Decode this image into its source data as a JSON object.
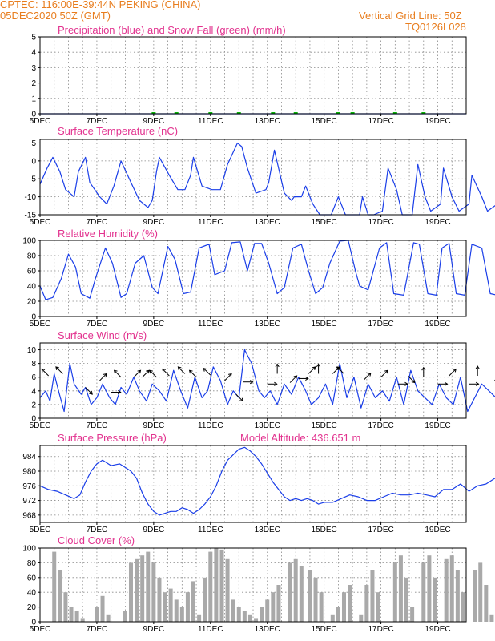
{
  "header": {
    "line1_left": "CPTEC:   116:00E-39:44N   PEKING (CHINA)",
    "line2_left": "05DEC2020 50Z (GMT)",
    "line2_right": "Vertical Grid Line: 50Z",
    "line3_right": "TQ0126L028"
  },
  "colors": {
    "header": "#e87d1e",
    "titles": "#e2338f",
    "series": "#1a3ee8",
    "snow": "#00b000",
    "cloud": "#a9a9a9"
  },
  "chart_data": [
    {
      "id": "precip",
      "type": "line",
      "title": "Precipitation (blue) and Snow Fall (green) (mm/h)",
      "x_labels": [
        "5DEC",
        "7DEC",
        "9DEC",
        "11DEC",
        "13DEC",
        "15DEC",
        "17DEC",
        "19DEC"
      ],
      "ylim": [
        0,
        5
      ],
      "y_ticks": [
        0,
        1,
        2,
        3,
        4,
        5
      ],
      "grid": true,
      "series": [
        {
          "name": "precipitation",
          "x_days": [
            0,
            15
          ],
          "values": [
            0,
            0
          ]
        },
        {
          "name": "snow fall",
          "x_days": [
            4,
            4.8,
            6,
            7,
            8.2,
            9,
            10.5,
            11,
            12.5,
            13.5
          ],
          "values": [
            0.05,
            0.05,
            0.05,
            0.05,
            0.05,
            0.05,
            0.05,
            0.05,
            0.05,
            0.05
          ]
        }
      ]
    },
    {
      "id": "temp",
      "type": "line",
      "title": "Surface Temperature (nC)",
      "x_labels": [
        "5DEC",
        "7DEC",
        "9DEC",
        "11DEC",
        "13DEC",
        "15DEC",
        "17DEC",
        "19DEC"
      ],
      "ylim": [
        -15,
        6
      ],
      "y_ticks": [
        -15,
        -10,
        -5,
        0,
        5
      ],
      "grid": true,
      "x_days": [
        0,
        0.25,
        0.45,
        0.7,
        0.9,
        1.2,
        1.35,
        1.6,
        1.75,
        2.1,
        2.35,
        2.6,
        2.85,
        3.2,
        3.5,
        3.8,
        3.95,
        4.1,
        4.2,
        4.55,
        4.85,
        5.1,
        5.3,
        5.4,
        5.7,
        6.05,
        6.35,
        6.6,
        6.95,
        7.1,
        7.3,
        7.6,
        7.95,
        8.05,
        8.25,
        8.6,
        8.85,
        8.95,
        9.2,
        9.35,
        9.6,
        9.85,
        10.25,
        10.5,
        10.75,
        11,
        11.25,
        11.35,
        11.55,
        11.75,
        12.05,
        12.25,
        12.55,
        12.75,
        13.1,
        13.3,
        13.55,
        13.75,
        14.1,
        14.2,
        14.5,
        14.75,
        15.1,
        15.2,
        15.55,
        15.75,
        16.1,
        16.2,
        16.55,
        16.75,
        17.1,
        17.2,
        17.6,
        17.75,
        18.1,
        18.15,
        18.6,
        18.75,
        19.15,
        19.4,
        19.7,
        20
      ],
      "values": [
        -6.5,
        -2,
        1,
        -3,
        -8,
        -10,
        -3,
        1,
        -6,
        -10,
        -12,
        -7,
        0,
        -6,
        -11,
        -13,
        -11,
        -3,
        1,
        -4,
        -8,
        -8,
        -4,
        1,
        -7,
        -8,
        -8,
        -1,
        5,
        4,
        -2,
        -9,
        -8,
        -6,
        3,
        -9,
        -11,
        -10,
        -10,
        -7,
        -12,
        -15.5,
        -15.5,
        -10,
        -17,
        -17,
        -15,
        -10,
        -17,
        -16,
        -14,
        -2,
        -8,
        -16,
        -15,
        -1,
        -10,
        -14,
        -12,
        -2,
        -10,
        -14,
        -12,
        -4,
        -10,
        -14,
        -12,
        -6,
        -10,
        -14,
        -13,
        -8,
        -10,
        -16,
        -13,
        -8,
        -10,
        -16,
        -13,
        -7,
        -10,
        -12
      ]
    },
    {
      "id": "rh",
      "type": "line",
      "title": "Relative Humidity (%)",
      "x_labels": [
        "5DEC",
        "7DEC",
        "9DEC",
        "11DEC",
        "13DEC",
        "15DEC",
        "17DEC",
        "19DEC"
      ],
      "ylim": [
        0,
        100
      ],
      "y_ticks": [
        0,
        20,
        40,
        60,
        80,
        100
      ],
      "grid": true,
      "x_days": [
        0,
        0.2,
        0.45,
        0.75,
        1,
        1.25,
        1.45,
        1.75,
        1.95,
        2.3,
        2.55,
        2.85,
        3.05,
        3.35,
        3.65,
        3.95,
        4.15,
        4.5,
        4.75,
        5.05,
        5.3,
        5.6,
        5.95,
        6.15,
        6.5,
        6.75,
        7.05,
        7.3,
        7.55,
        7.8,
        8.05,
        8.35,
        8.6,
        8.9,
        9.2,
        9.45,
        9.7,
        9.95,
        10.2,
        10.55,
        10.85,
        11.1,
        11.25,
        11.55,
        11.95,
        12.2,
        12.45,
        12.8,
        13.15,
        13.35,
        13.65,
        13.95,
        14.15,
        14.4,
        14.65,
        14.95,
        15.2,
        15.55,
        15.85,
        16.1,
        16.35,
        16.6,
        16.9,
        17.15,
        17.4,
        17.75,
        18.05,
        18.3,
        18.55,
        18.85,
        19.15,
        19.35,
        19.6,
        19.8,
        20
      ],
      "values": [
        40,
        22,
        25,
        50,
        82,
        65,
        30,
        24,
        50,
        90,
        70,
        25,
        30,
        70,
        80,
        38,
        30,
        92,
        75,
        30,
        32,
        90,
        95,
        55,
        60,
        97,
        98,
        60,
        96,
        96,
        70,
        30,
        38,
        90,
        95,
        60,
        30,
        38,
        70,
        99,
        100,
        60,
        40,
        35,
        90,
        97,
        30,
        28,
        97,
        95,
        30,
        28,
        90,
        96,
        30,
        28,
        95,
        90,
        30,
        28,
        92,
        90,
        30,
        28,
        95,
        90,
        35,
        30,
        95,
        90,
        35,
        30,
        80,
        80,
        80
      ]
    },
    {
      "id": "wind",
      "type": "line",
      "title": "Surface Wind (m/s)",
      "x_labels": [
        "5DEC",
        "7DEC",
        "9DEC",
        "11DEC",
        "13DEC",
        "15DEC",
        "17DEC",
        "19DEC"
      ],
      "ylim": [
        0,
        11
      ],
      "y_ticks": [
        0,
        2,
        4,
        6,
        8,
        10
      ],
      "grid": true,
      "x_days": [
        0,
        0.2,
        0.35,
        0.5,
        0.65,
        0.85,
        1.05,
        1.2,
        1.45,
        1.6,
        1.8,
        2,
        2.2,
        2.45,
        2.65,
        2.85,
        3.05,
        3.3,
        3.5,
        3.75,
        3.95,
        4.2,
        4.45,
        4.7,
        4.95,
        5.2,
        5.45,
        5.7,
        5.9,
        6.1,
        6.35,
        6.6,
        6.8,
        7.0,
        7.2,
        7.45,
        7.7,
        7.9,
        8.1,
        8.35,
        8.6,
        8.85,
        9.1,
        9.35,
        9.55,
        9.8,
        10.05,
        10.3,
        10.55,
        10.8,
        11.05,
        11.3,
        11.55,
        11.8,
        12.05,
        12.3,
        12.55,
        12.8,
        13.05,
        13.3,
        13.55,
        13.8,
        14.05,
        14.3,
        14.55,
        14.8,
        15.05,
        15.3,
        15.55,
        15.8,
        16.05,
        16.3,
        16.55,
        16.8,
        17.05,
        17.3,
        17.55,
        17.8,
        18.05,
        18.3,
        18.55,
        18.8,
        19.05,
        19.3,
        19.55,
        19.8,
        20
      ],
      "values": [
        3,
        4,
        2.5,
        6.5,
        4,
        1,
        8,
        5,
        3.5,
        4.5,
        2,
        3,
        5,
        3,
        2,
        4.5,
        3.5,
        6,
        4,
        2.5,
        5,
        4,
        2.5,
        7,
        4,
        1.5,
        6,
        3,
        4,
        7.5,
        5.5,
        2,
        4,
        3,
        10,
        8,
        4,
        3,
        4,
        2,
        5,
        3.5,
        6,
        4,
        2,
        3,
        5,
        2,
        8,
        3,
        6,
        1.5,
        5,
        3,
        4,
        2.5,
        6,
        2,
        7,
        4,
        3,
        2,
        5,
        3,
        2,
        6,
        1,
        3,
        5,
        4,
        3,
        5.5,
        3,
        4,
        3,
        5,
        3.5,
        4,
        2,
        5,
        3,
        4,
        3.5,
        4,
        3.5,
        4,
        4
      ],
      "arrows": [
        {
          "x": 0.3,
          "v": 6.2,
          "dir": "NW"
        },
        {
          "x": 0.8,
          "v": 6.5,
          "dir": "NW"
        },
        {
          "x": 1.6,
          "v": 4.5,
          "dir": "SE"
        },
        {
          "x": 2.1,
          "v": 5.5,
          "dir": "NE"
        },
        {
          "x": 2.5,
          "v": 3.8,
          "dir": "E"
        },
        {
          "x": 2.85,
          "v": 6.0,
          "dir": "NW"
        },
        {
          "x": 3.3,
          "v": 6.0,
          "dir": "NE"
        },
        {
          "x": 3.6,
          "v": 6.0,
          "dir": "NE"
        },
        {
          "x": 4.1,
          "v": 6.0,
          "dir": "NW"
        },
        {
          "x": 4.55,
          "v": 6.2,
          "dir": "NW"
        },
        {
          "x": 5.1,
          "v": 6.5,
          "dir": "NW"
        },
        {
          "x": 5.5,
          "v": 6.0,
          "dir": "NW"
        },
        {
          "x": 6.0,
          "v": 6.3,
          "dir": "NW"
        },
        {
          "x": 6.5,
          "v": 5.5,
          "dir": "NE"
        },
        {
          "x": 6.9,
          "v": 3.5,
          "dir": "SE"
        },
        {
          "x": 7.15,
          "v": 5.3,
          "dir": "E"
        },
        {
          "x": 8.0,
          "v": 5.0,
          "dir": "E"
        },
        {
          "x": 8.35,
          "v": 6.5,
          "dir": "N"
        },
        {
          "x": 8.8,
          "v": 5.2,
          "dir": "NE"
        },
        {
          "x": 9.1,
          "v": 5.8,
          "dir": "E"
        },
        {
          "x": 9.45,
          "v": 6.5,
          "dir": "NE"
        },
        {
          "x": 9.8,
          "v": 6.5,
          "dir": "N"
        },
        {
          "x": 10.3,
          "v": 6.5,
          "dir": "NE"
        },
        {
          "x": 10.7,
          "v": 6.5,
          "dir": "NW"
        },
        {
          "x": 11.4,
          "v": 5.6,
          "dir": "NE"
        },
        {
          "x": 12.0,
          "v": 6.0,
          "dir": "NE"
        },
        {
          "x": 12.6,
          "v": 5.0,
          "dir": "E"
        },
        {
          "x": 12.95,
          "v": 6.2,
          "dir": "SE"
        },
        {
          "x": 13.5,
          "v": 6.0,
          "dir": "N"
        },
        {
          "x": 14.0,
          "v": 5.0,
          "dir": "E"
        },
        {
          "x": 14.4,
          "v": 6.2,
          "dir": "NE"
        },
        {
          "x": 15.1,
          "v": 5.0,
          "dir": "E"
        },
        {
          "x": 15.4,
          "v": 6.2,
          "dir": "N"
        },
        {
          "x": 16.0,
          "v": 5.5,
          "dir": "NE"
        },
        {
          "x": 16.6,
          "v": 5.2,
          "dir": "E"
        },
        {
          "x": 17.1,
          "v": 5.5,
          "dir": "N"
        },
        {
          "x": 17.6,
          "v": 5.2,
          "dir": "E"
        },
        {
          "x": 18.0,
          "v": 6.0,
          "dir": "NE"
        },
        {
          "x": 18.5,
          "v": 5.5,
          "dir": "N"
        },
        {
          "x": 18.8,
          "v": 5.3,
          "dir": "E"
        },
        {
          "x": 19.5,
          "v": 5.5,
          "dir": "E"
        }
      ]
    },
    {
      "id": "pressure",
      "type": "line",
      "title": "Surface Pressure (hPa)",
      "annotation": "Model Altitude: 436.651  m",
      "x_labels": [
        "5DEC",
        "7DEC",
        "9DEC",
        "11DEC",
        "13DEC",
        "15DEC",
        "17DEC",
        "19DEC"
      ],
      "ylim": [
        966,
        987
      ],
      "y_ticks": [
        968,
        972,
        976,
        980,
        984
      ],
      "grid": true,
      "x_days": [
        0,
        0.3,
        0.6,
        0.9,
        1.2,
        1.4,
        1.6,
        1.8,
        2.0,
        2.2,
        2.5,
        2.8,
        3.0,
        3.2,
        3.4,
        3.6,
        3.8,
        4.0,
        4.2,
        4.4,
        4.6,
        4.8,
        5.0,
        5.2,
        5.4,
        5.6,
        5.8,
        6.0,
        6.2,
        6.4,
        6.6,
        6.8,
        7.0,
        7.2,
        7.4,
        7.6,
        7.8,
        8.0,
        8.2,
        8.4,
        8.6,
        8.8,
        9.0,
        9.2,
        9.4,
        9.6,
        9.8,
        10.0,
        10.3,
        10.6,
        10.9,
        11.2,
        11.5,
        11.8,
        12.1,
        12.4,
        12.7,
        13.0,
        13.3,
        13.6,
        13.9,
        14.2,
        14.5,
        14.8,
        15.1,
        15.4,
        15.7,
        16.0,
        16.3,
        16.6,
        16.9,
        17.2,
        17.5,
        17.8,
        18.1,
        18.4,
        18.7,
        19.0,
        19.3,
        19.6,
        20.0
      ],
      "values": [
        976,
        975,
        974.5,
        973.5,
        972.5,
        973.5,
        977,
        980,
        982,
        983,
        981.5,
        982,
        981,
        980,
        978,
        974,
        971,
        969,
        968,
        968.5,
        969,
        969,
        970,
        969.5,
        968.5,
        969.5,
        971,
        973,
        976,
        980,
        983,
        984.5,
        986,
        986.5,
        985.5,
        984,
        982,
        979.5,
        977,
        975,
        973,
        972,
        972.5,
        972,
        972.5,
        972,
        971,
        971.5,
        971.5,
        972.5,
        973.5,
        973,
        972,
        972,
        973,
        974,
        973.5,
        973.5,
        974,
        973.5,
        973,
        975,
        975,
        976.5,
        974.5,
        976,
        976.5,
        978,
        979,
        977,
        976.5,
        975,
        973.5,
        972.5,
        974,
        972.5,
        971.5,
        973,
        974,
        975,
        977
      ]
    },
    {
      "id": "cloud",
      "type": "bar",
      "title": "Cloud Cover (%)",
      "x_labels": [
        "5DEC",
        "7DEC",
        "9DEC",
        "11DEC",
        "13DEC",
        "15DEC",
        "17DEC",
        "19DEC"
      ],
      "ylim": [
        0,
        100
      ],
      "y_ticks": [
        0,
        20,
        40,
        60,
        80,
        100
      ],
      "grid": true,
      "x_days": [
        0.5,
        0.7,
        0.9,
        1.1,
        1.3,
        1.5,
        2.0,
        2.2,
        2.4,
        3.0,
        3.2,
        3.4,
        3.6,
        3.8,
        4.0,
        4.2,
        4.4,
        4.6,
        4.8,
        5.0,
        5.2,
        5.4,
        5.6,
        5.8,
        6.0,
        6.2,
        6.4,
        6.6,
        6.8,
        7.0,
        7.2,
        7.4,
        7.6,
        7.8,
        8.0,
        8.2,
        8.4,
        8.8,
        9.0,
        9.2,
        9.5,
        9.7,
        9.9,
        10.3,
        10.5,
        10.7,
        10.9,
        11.3,
        11.5,
        11.7,
        11.9,
        12.5,
        12.7,
        12.9,
        13.1,
        13.5,
        13.7,
        13.9,
        14.3,
        14.5,
        14.7,
        14.9,
        15.3,
        15.5,
        15.7,
        15.9,
        16.3,
        16.5,
        16.7,
        16.9,
        17.1,
        17.3,
        17.5,
        18.0,
        18.2,
        18.4,
        18.6,
        18.9,
        19.1,
        19.3,
        19.5,
        19.7,
        19.9
      ],
      "values": [
        95,
        70,
        40,
        20,
        15,
        5,
        20,
        35,
        10,
        15,
        80,
        85,
        90,
        95,
        80,
        60,
        40,
        45,
        30,
        20,
        40,
        55,
        10,
        60,
        95,
        100,
        98,
        85,
        30,
        20,
        15,
        10,
        5,
        20,
        30,
        40,
        50,
        80,
        85,
        75,
        70,
        60,
        40,
        10,
        20,
        40,
        50,
        10,
        50,
        70,
        40,
        80,
        90,
        60,
        20,
        80,
        90,
        60,
        85,
        90,
        70,
        40,
        70,
        80,
        50,
        10,
        80,
        90,
        60,
        30,
        20,
        10,
        5,
        70,
        90,
        80,
        50,
        20,
        70,
        60,
        50,
        80,
        75
      ]
    }
  ]
}
